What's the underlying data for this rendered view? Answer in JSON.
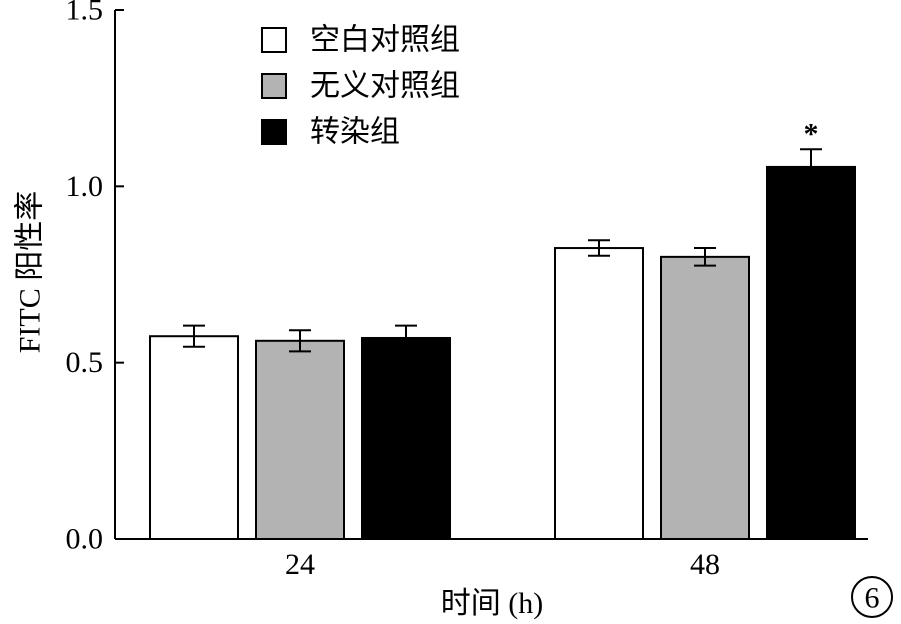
{
  "chart_data": {
    "type": "bar",
    "categories": [
      "24",
      "48"
    ],
    "series": [
      {
        "name": "空白对照组",
        "values": [
          0.575,
          0.825
        ],
        "errors": [
          0.03,
          0.022
        ],
        "color": "#ffffff"
      },
      {
        "name": "无义对照组",
        "values": [
          0.562,
          0.8
        ],
        "errors": [
          0.03,
          0.025
        ],
        "color": "#b3b3b3"
      },
      {
        "name": "转染组",
        "values": [
          0.57,
          1.055
        ],
        "errors": [
          0.035,
          0.05
        ],
        "color": "#000000"
      }
    ],
    "xlabel": "时间 (h)",
    "ylabel": "FITC 阳性率",
    "ylim": [
      0,
      1.5
    ],
    "yticks": [
      "0.0",
      "0.5",
      "1.0",
      "1.5"
    ],
    "ytick_values": [
      0,
      0.5,
      1.0,
      1.5
    ],
    "grid": false,
    "legend_position": "top-left",
    "annotations": [
      {
        "text": "*",
        "category": "48",
        "series": "转染组"
      }
    ],
    "panel_label": "6"
  }
}
